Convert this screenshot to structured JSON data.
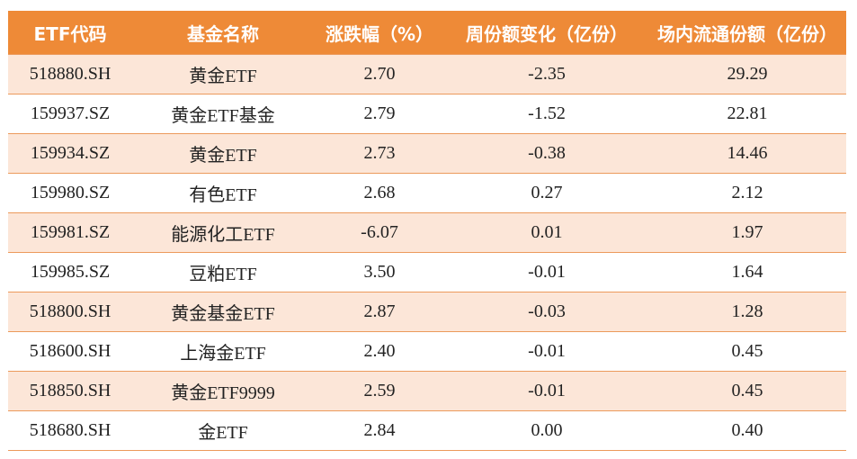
{
  "columns": [
    "ETF代码",
    "基金名称",
    "涨跌幅（%）",
    "周份额变化（亿份）",
    "场内流通份额（亿份）"
  ],
  "rows": [
    {
      "code": "518880.SH",
      "name": "黄金ETF",
      "change": "2.70",
      "share_change": "-2.35",
      "float_share": "29.29"
    },
    {
      "code": "159937.SZ",
      "name": "黄金ETF基金",
      "change": "2.79",
      "share_change": "-1.52",
      "float_share": "22.81"
    },
    {
      "code": "159934.SZ",
      "name": "黄金ETF",
      "change": "2.73",
      "share_change": "-0.38",
      "float_share": "14.46"
    },
    {
      "code": "159980.SZ",
      "name": "有色ETF",
      "change": "2.68",
      "share_change": "0.27",
      "float_share": "2.12"
    },
    {
      "code": "159981.SZ",
      "name": "能源化工ETF",
      "change": "-6.07",
      "share_change": "0.01",
      "float_share": "1.97"
    },
    {
      "code": "159985.SZ",
      "name": "豆粕ETF",
      "change": "3.50",
      "share_change": "-0.01",
      "float_share": "1.64"
    },
    {
      "code": "518800.SH",
      "name": "黄金基金ETF",
      "change": "2.87",
      "share_change": "-0.03",
      "float_share": "1.28"
    },
    {
      "code": "518600.SH",
      "name": "上海金ETF",
      "change": "2.40",
      "share_change": "-0.01",
      "float_share": "0.45"
    },
    {
      "code": "518850.SH",
      "name": "黄金ETF9999",
      "change": "2.59",
      "share_change": "-0.01",
      "float_share": "0.45"
    },
    {
      "code": "518680.SH",
      "name": "金ETF",
      "change": "2.84",
      "share_change": "0.00",
      "float_share": "0.40"
    }
  ],
  "colors": {
    "header_bg": "#ee8a37",
    "header_text": "#ffffff",
    "alt_row_bg": "#fce6d8",
    "row_border": "#ec9a5c"
  }
}
